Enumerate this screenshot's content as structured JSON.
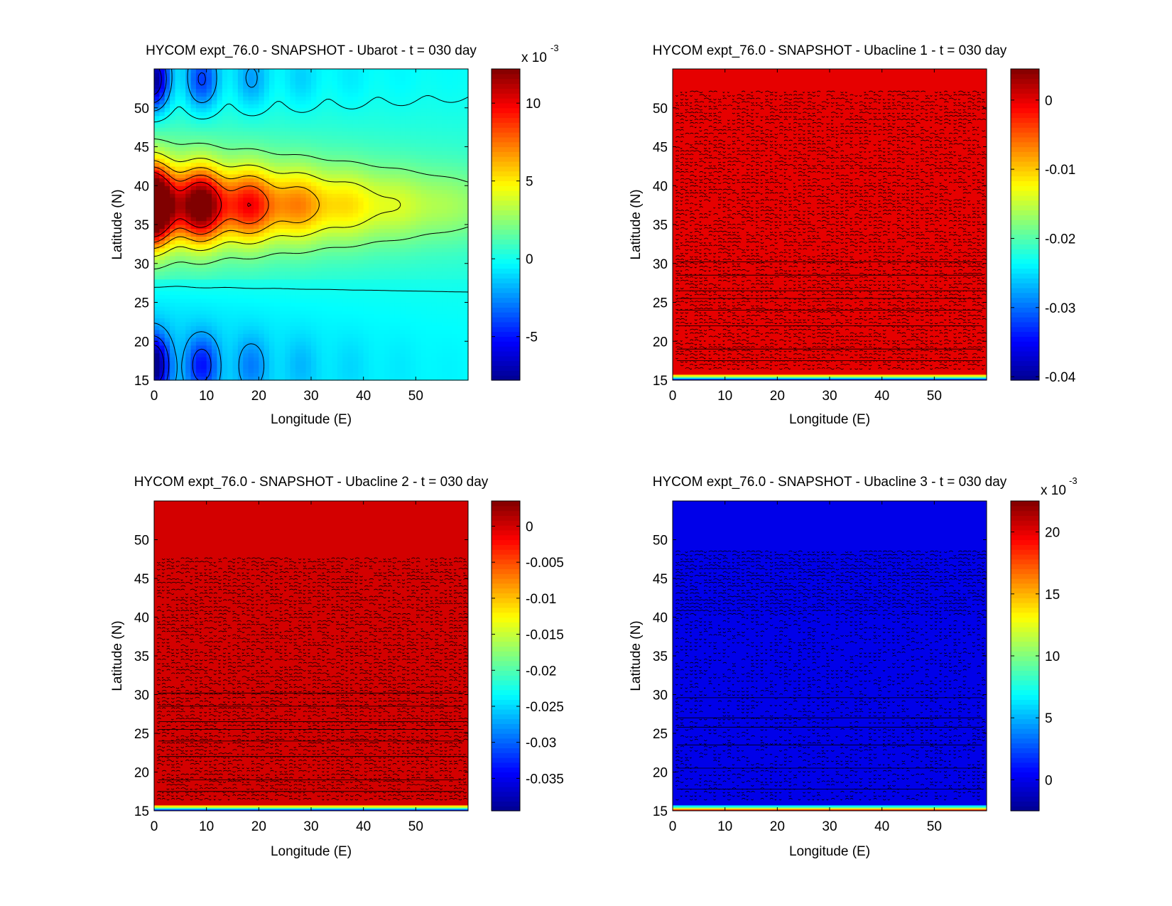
{
  "figure": {
    "background": "#ffffff"
  },
  "colormap": [
    "#00008f",
    "#0000ff",
    "#0080ff",
    "#00ffff",
    "#80ff80",
    "#ffff00",
    "#ff8000",
    "#ff0000",
    "#800000"
  ],
  "chart_data": [
    {
      "type": "heatmap",
      "title": "HYCOM expt_76.0 - SNAPSHOT - Ubarot - t = 030 day",
      "xlabel": "Longitude (E)",
      "ylabel": "Latitude (N)",
      "xlim": [
        0,
        60
      ],
      "ylim": [
        15,
        55
      ],
      "xticks": [
        "0",
        "10",
        "20",
        "30",
        "40",
        "50"
      ],
      "yticks": [
        "15",
        "20",
        "25",
        "30",
        "35",
        "40",
        "45",
        "50"
      ],
      "colorbar": {
        "clim": [
          -0.0078,
          0.0122
        ],
        "ticks": [
          "-5",
          "0",
          "5",
          "10"
        ],
        "tick_values": [
          -0.005,
          0,
          0.005,
          0.01
        ],
        "multiplier": "x 10",
        "exponent": "-3"
      },
      "field": "ubarot",
      "contour_color": "#000000"
    },
    {
      "type": "heatmap",
      "title": "HYCOM expt_76.0 - SNAPSHOT - Ubacline 1 - t = 030 day",
      "xlabel": "Longitude (E)",
      "ylabel": "Latitude (N)",
      "xlim": [
        0,
        60
      ],
      "ylim": [
        15,
        55
      ],
      "xticks": [
        "0",
        "10",
        "20",
        "30",
        "40",
        "50"
      ],
      "yticks": [
        "15",
        "20",
        "25",
        "30",
        "35",
        "40",
        "45",
        "50"
      ],
      "colorbar": {
        "clim": [
          -0.0405,
          0.0045
        ],
        "ticks": [
          "0",
          "-0.01",
          "-0.02",
          "-0.03",
          "-0.04"
        ],
        "tick_values": [
          0,
          -0.01,
          -0.02,
          -0.03,
          -0.04
        ],
        "multiplier": "",
        "exponent": ""
      },
      "field": "bacline1",
      "contour_color": "#000000"
    },
    {
      "type": "heatmap",
      "title": "HYCOM expt_76.0 - SNAPSHOT - Ubacline 2 - t = 030 day",
      "xlabel": "Longitude (E)",
      "ylabel": "Latitude (N)",
      "xlim": [
        0,
        60
      ],
      "ylim": [
        15,
        55
      ],
      "xticks": [
        "0",
        "10",
        "20",
        "30",
        "40",
        "50"
      ],
      "yticks": [
        "15",
        "20",
        "25",
        "30",
        "35",
        "40",
        "45",
        "50"
      ],
      "colorbar": {
        "clim": [
          -0.0395,
          0.0035
        ],
        "ticks": [
          "0",
          "-0.005",
          "-0.01",
          "-0.015",
          "-0.02",
          "-0.025",
          "-0.03",
          "-0.035"
        ],
        "tick_values": [
          0,
          -0.005,
          -0.01,
          -0.015,
          -0.02,
          -0.025,
          -0.03,
          -0.035
        ],
        "multiplier": "",
        "exponent": ""
      },
      "field": "bacline2",
      "contour_color": "#000000"
    },
    {
      "type": "heatmap",
      "title": "HYCOM expt_76.0 - SNAPSHOT - Ubacline 3 - t = 030 day",
      "xlabel": "Longitude (E)",
      "ylabel": "Latitude (N)",
      "xlim": [
        0,
        60
      ],
      "ylim": [
        15,
        55
      ],
      "xticks": [
        "0",
        "10",
        "20",
        "30",
        "40",
        "50"
      ],
      "yticks": [
        "15",
        "20",
        "25",
        "30",
        "35",
        "40",
        "45",
        "50"
      ],
      "colorbar": {
        "clim": [
          -0.0025,
          0.0225
        ],
        "ticks": [
          "0",
          "5",
          "10",
          "15",
          "20"
        ],
        "tick_values": [
          0,
          0.005,
          0.01,
          0.015,
          0.02
        ],
        "multiplier": "x 10",
        "exponent": "-3"
      },
      "field": "bacline3",
      "contour_color": "#000000"
    }
  ]
}
